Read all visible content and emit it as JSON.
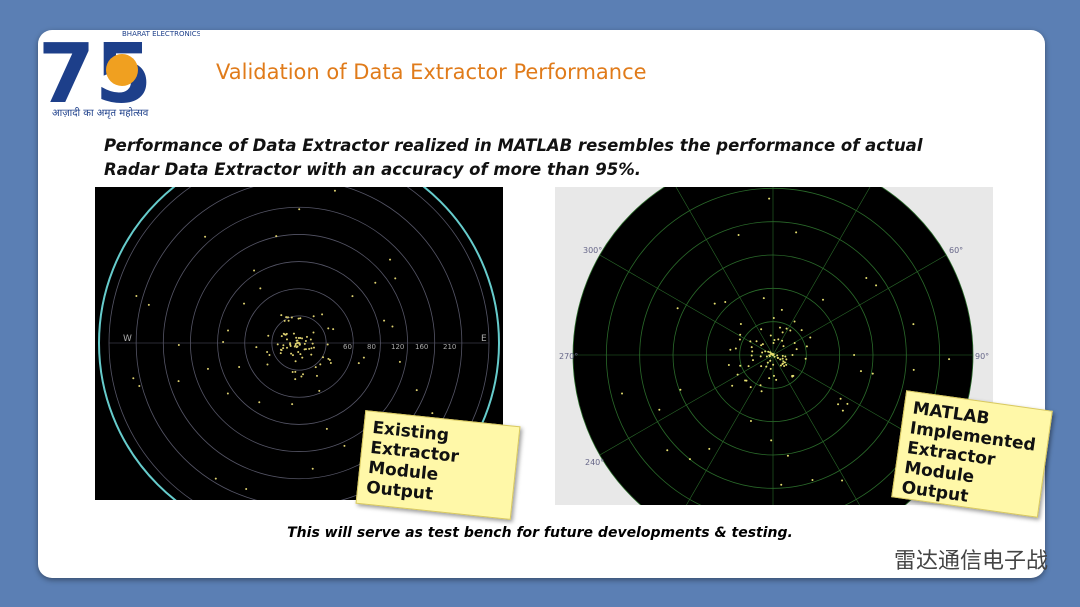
{
  "logo": {
    "number": "75",
    "company": "BHARAT ELECTRONICS",
    "tagline": "आज़ादी का अमृत महोत्सव"
  },
  "title": "Validation of Data Extractor Performance",
  "body": "Performance of Data Extractor realized in MATLAB resembles the performance of actual Radar Data Extractor with an accuracy of more than 95%.",
  "left_panel": {
    "callout": "Existing Extractor Module Output",
    "labels": [
      "W",
      "E",
      "60",
      "80",
      "120",
      "160",
      "210"
    ]
  },
  "right_panel": {
    "callout": "MATLAB Implemented Extractor Module Output",
    "labels": [
      "300°",
      "60°",
      "270°",
      "90°",
      "240°"
    ]
  },
  "footer": "This will serve as test bench for future developments & testing.",
  "watermark": "雷达通信电子战"
}
